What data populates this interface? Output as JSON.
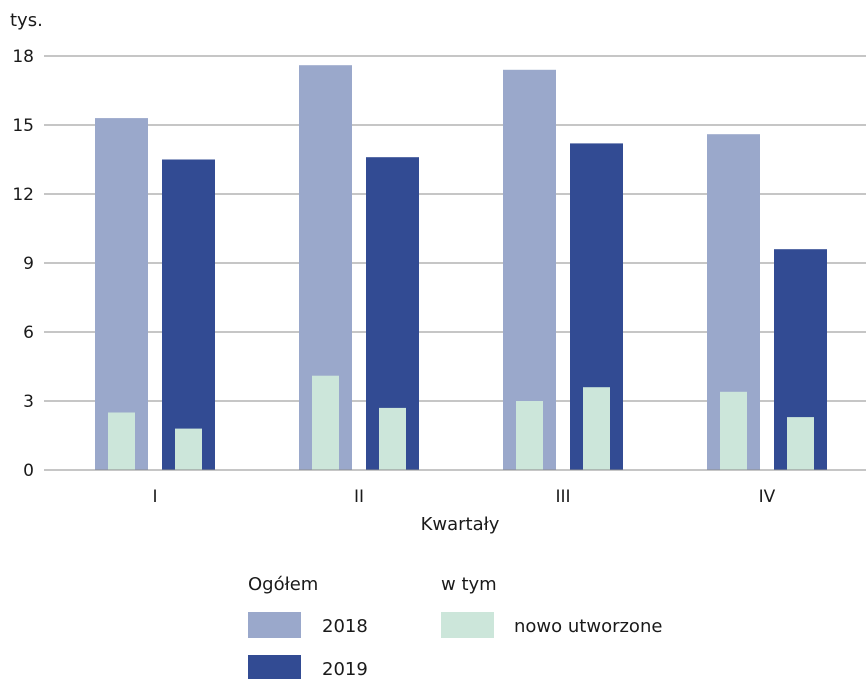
{
  "chart_data": {
    "type": "bar",
    "y_unit_label": "tys.",
    "xlabel": "Kwartały",
    "categories": [
      "I",
      "II",
      "III",
      "IV"
    ],
    "ylim": [
      0,
      18
    ],
    "yticks": [
      0,
      3,
      6,
      9,
      12,
      15,
      18
    ],
    "grid": true,
    "series": [
      {
        "name": "2018",
        "group": "Ogółem",
        "color": "#9aa8cb",
        "values": [
          15.3,
          17.6,
          17.4,
          14.6
        ]
      },
      {
        "name": "2019",
        "group": "Ogółem",
        "color": "#324b93",
        "values": [
          13.5,
          13.6,
          14.2,
          9.6
        ]
      }
    ],
    "subset_series": {
      "name": "nowo utworzone",
      "group": "w tym",
      "color": "#cce6da",
      "values_2018": [
        2.5,
        4.1,
        3.0,
        3.4
      ],
      "values_2019": [
        1.8,
        2.7,
        3.6,
        2.3
      ]
    },
    "legend": {
      "placement": "bottom",
      "group_total_title": "Ogółem",
      "group_subset_title": "w tym"
    }
  }
}
